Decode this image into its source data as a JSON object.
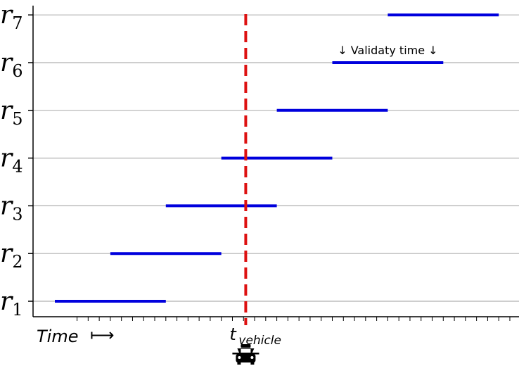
{
  "chart_data": {
    "type": "timeline",
    "rows": [
      {
        "label": "r",
        "sub": "1",
        "start": 0,
        "end": 10
      },
      {
        "label": "r",
        "sub": "2",
        "start": 5,
        "end": 15
      },
      {
        "label": "r",
        "sub": "3",
        "start": 10,
        "end": 20
      },
      {
        "label": "r",
        "sub": "4",
        "start": 15,
        "end": 25
      },
      {
        "label": "r",
        "sub": "5",
        "start": 20,
        "end": 30
      },
      {
        "label": "r",
        "sub": "6",
        "start": 25,
        "end": 35
      },
      {
        "label": "r",
        "sub": "7",
        "start": 30,
        "end": 40
      }
    ],
    "vehicle_time": 17.2,
    "xlim": [
      -2,
      42
    ],
    "x_tick_count": 41,
    "xlabel": "Time",
    "xlabel_arrow": "⟼",
    "vehicle_label": "t",
    "vehicle_sub": "vehicle",
    "annotation": "↓ Validaty time ↓",
    "annotation_row": 6,
    "grid": true,
    "bar_color": "#0000dd",
    "marker_color": "#dd1111",
    "grid_color": "#b0b0b0",
    "vehicle_icon": "taxi-icon"
  }
}
